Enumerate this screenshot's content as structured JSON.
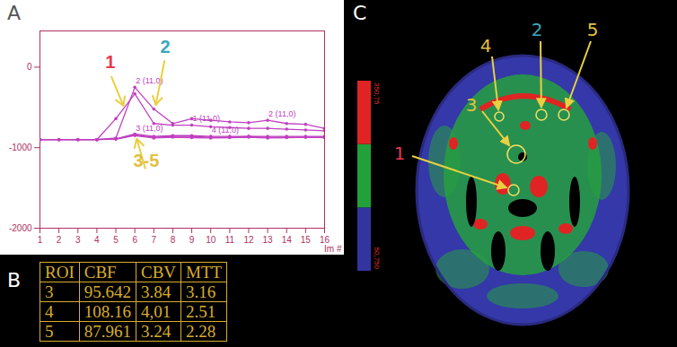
{
  "panels": [
    "A",
    "B",
    "C"
  ],
  "chart_data": {
    "type": "line",
    "xlabel": "Im #",
    "x": [
      1,
      2,
      3,
      4,
      5,
      6,
      7,
      8,
      9,
      10,
      11,
      12,
      13,
      14,
      15,
      16
    ],
    "xlim": [
      1,
      16
    ],
    "xticks": [
      1,
      2,
      3,
      4,
      5,
      6,
      7,
      8,
      9,
      10,
      11,
      12,
      13,
      14,
      15,
      16
    ],
    "ylim": [
      -2000,
      450
    ],
    "yticks": [
      0,
      -1000,
      -2000
    ],
    "grid": false,
    "series": [
      {
        "name": "1",
        "color": "#c040c0",
        "marker": "dot",
        "values": [
          -900,
          -900,
          -900,
          -900,
          -640,
          -330,
          -700,
          -720,
          -720,
          -740,
          -750,
          -760,
          -760,
          -770,
          -780,
          -790
        ]
      },
      {
        "name": "2",
        "color": "#c040c0",
        "marker": "dot",
        "values": [
          -900,
          -900,
          -900,
          -900,
          -880,
          -250,
          -520,
          -700,
          -640,
          -660,
          -680,
          -690,
          -660,
          -700,
          -710,
          -760
        ]
      },
      {
        "name": "3",
        "color": "#c040c0",
        "marker": "dot",
        "values": [
          -900,
          -900,
          -900,
          -900,
          -890,
          -840,
          -870,
          -860,
          -860,
          -870,
          -870,
          -860,
          -870,
          -870,
          -870,
          -870
        ]
      },
      {
        "name": "4",
        "color": "#c040c0",
        "marker": "dot",
        "values": [
          -900,
          -900,
          -900,
          -900,
          -890,
          -830,
          -860,
          -850,
          -850,
          -860,
          -860,
          -860,
          -860,
          -860,
          -860,
          -860
        ]
      },
      {
        "name": "5",
        "color": "#c040c0",
        "marker": "dot",
        "values": [
          -900,
          -900,
          -900,
          -900,
          -895,
          -850,
          -880,
          -870,
          -875,
          -880,
          -875,
          -870,
          -880,
          -875,
          -870,
          -875
        ]
      }
    ],
    "annotations": [
      {
        "x": 6,
        "y": -250,
        "text": "2 (11,0)"
      },
      {
        "x": 13,
        "y": -660,
        "text": "2 (11,0)"
      },
      {
        "x": 9,
        "y": -720,
        "text": "1 (11,0)"
      },
      {
        "x": 6,
        "y": -840,
        "text": "3 (11,0)"
      },
      {
        "x": 10,
        "y": -860,
        "text": "4 (11,0)"
      }
    ],
    "callouts": [
      {
        "text": "1",
        "color": "#e8384f",
        "from": [
          4.7,
          -80
        ],
        "to": [
          5.4,
          -480
        ]
      },
      {
        "text": "2",
        "color": "#3aa7b8",
        "from": [
          7.6,
          120
        ],
        "to": [
          7.1,
          -470
        ]
      },
      {
        "text": "3-5",
        "color": "#e2c040",
        "from": [
          6.6,
          -1300
        ],
        "to": [
          6.1,
          -890
        ]
      }
    ]
  },
  "table": {
    "header": [
      "ROI",
      "CBF",
      "CBV",
      "MTT"
    ],
    "rows": [
      [
        "3",
        "95.642",
        "3.84",
        "3.16"
      ],
      [
        "4",
        "108.16",
        "4,01",
        "2.51"
      ],
      [
        "5",
        "87.961",
        "3.24",
        "2.28"
      ]
    ]
  },
  "image": {
    "colorbar": {
      "range": [
        50.75,
        350.75
      ],
      "colors": [
        "#3434a0",
        "#22a03a",
        "#e02424"
      ],
      "ticks": [
        {
          "value": 350.75,
          "label": "350,75"
        },
        {
          "value": 50.75,
          "label": "50,750"
        }
      ]
    },
    "rois": [
      {
        "label": "1",
        "color": "#e8384f"
      },
      {
        "label": "2",
        "color": "#3aa7b8"
      },
      {
        "label": "3",
        "color": "#e2c040"
      },
      {
        "label": "4",
        "color": "#e2c040"
      },
      {
        "label": "5",
        "color": "#e2c040"
      }
    ]
  }
}
